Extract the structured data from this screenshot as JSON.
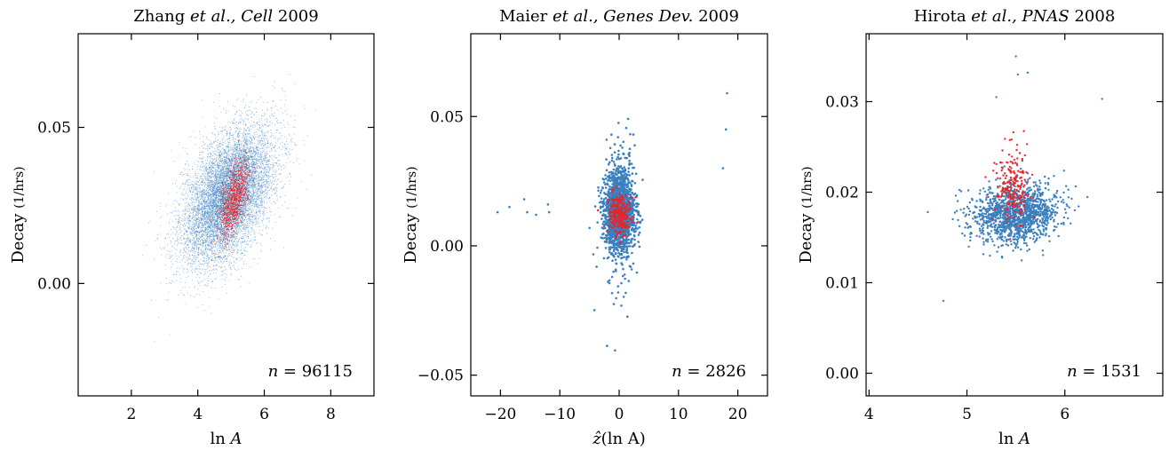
{
  "colors": {
    "bulk": "#3a7fbf",
    "highlight": "#e3262a"
  },
  "chart_data": [
    {
      "type": "scatter",
      "title": {
        "prefix": "Zhang ",
        "italic": "et al., Cell",
        "suffix": " 2009"
      },
      "xlabel": {
        "pre": "ln ",
        "italic": "A",
        "post": ""
      },
      "ylabel": {
        "main": "Decay ",
        "unit": "(1/hrs)"
      },
      "xlim": [
        0.4,
        9.3
      ],
      "ylim": [
        -0.036,
        0.08
      ],
      "xticks": [
        2,
        4,
        6,
        8
      ],
      "xtick_labels": [
        "2",
        "4",
        "6",
        "8"
      ],
      "yticks": [
        0.0,
        0.05
      ],
      "ytick_labels": [
        "0.00",
        "0.05"
      ],
      "annotation": {
        "var": "n",
        "eq": " = ",
        "value": "96115"
      },
      "series": [
        {
          "kind": "bulk",
          "count": 96115,
          "center": [
            4.9,
            0.028
          ],
          "spread": [
            0.7,
            0.011
          ],
          "rho": 0.5
        },
        {
          "kind": "highlight",
          "center": [
            5.1,
            0.027
          ],
          "spread": [
            0.22,
            0.006
          ],
          "rho": 0.55
        }
      ]
    },
    {
      "type": "scatter",
      "title": {
        "prefix": "Maier ",
        "italic": "et al., Genes Dev.",
        "suffix": " 2009"
      },
      "xlabel": {
        "pre": "",
        "italic": "ẑ",
        "post": "(ln A)"
      },
      "ylabel": {
        "main": "Decay ",
        "unit": "(1/hrs)"
      },
      "xlim": [
        -25,
        25
      ],
      "ylim": [
        -0.058,
        0.082
      ],
      "xticks": [
        -20,
        -10,
        0,
        10,
        20
      ],
      "xtick_labels": [
        "−20",
        "−10",
        "0",
        "10",
        "20"
      ],
      "yticks": [
        -0.05,
        0.0,
        0.05
      ],
      "ytick_labels": [
        "−0.05",
        "0.00",
        "0.05"
      ],
      "annotation": {
        "var": "n",
        "eq": " = ",
        "value": "2826"
      },
      "series": [
        {
          "kind": "bulk",
          "count": 2826,
          "center": [
            0.0,
            0.013
          ],
          "spread": [
            1.3,
            0.0075
          ],
          "rho": 0.0
        },
        {
          "kind": "highlight",
          "center": [
            0.0,
            0.012
          ],
          "spread": [
            0.9,
            0.004
          ],
          "rho": 0.0
        }
      ],
      "outliers": [
        [
          -20.5,
          0.013
        ],
        [
          -18.5,
          0.015
        ],
        [
          -16,
          0.018
        ],
        [
          -15.5,
          0.013
        ],
        [
          -14,
          0.012
        ],
        [
          -12,
          0.016
        ],
        [
          -11.8,
          0.013
        ],
        [
          17.5,
          0.03
        ],
        [
          18,
          0.045
        ],
        [
          18.2,
          0.059
        ]
      ]
    },
    {
      "type": "scatter",
      "title": {
        "prefix": "Hirota ",
        "italic": "et al., PNAS",
        "suffix": " 2008"
      },
      "xlabel": {
        "pre": "ln ",
        "italic": "A",
        "post": ""
      },
      "ylabel": {
        "main": "Decay ",
        "unit": "(1/hrs)"
      },
      "xlim": [
        3.97,
        7.0
      ],
      "ylim": [
        -0.0025,
        0.0375
      ],
      "xticks": [
        4,
        5,
        6
      ],
      "xtick_labels": [
        "4",
        "5",
        "6"
      ],
      "yticks": [
        0.0,
        0.01,
        0.02,
        0.03
      ],
      "ytick_labels": [
        "0.00",
        "0.01",
        "0.02",
        "0.03"
      ],
      "annotation": {
        "var": "n",
        "eq": " = ",
        "value": "1531"
      },
      "series": [
        {
          "kind": "bulk",
          "count": 1531,
          "center": [
            5.5,
            0.0175
          ],
          "spread": [
            0.22,
            0.0016
          ],
          "rho": 0.15
        },
        {
          "kind": "highlight",
          "center": [
            5.47,
            0.0205
          ],
          "spread": [
            0.09,
            0.0022
          ],
          "rho": 0.0
        }
      ],
      "outliers": [
        [
          4.6,
          0.0178
        ],
        [
          4.76,
          0.008
        ],
        [
          5.5,
          0.035
        ],
        [
          5.3,
          0.0305
        ],
        [
          6.38,
          0.0303
        ],
        [
          5.62,
          0.0332
        ],
        [
          5.52,
          0.033
        ]
      ]
    }
  ]
}
